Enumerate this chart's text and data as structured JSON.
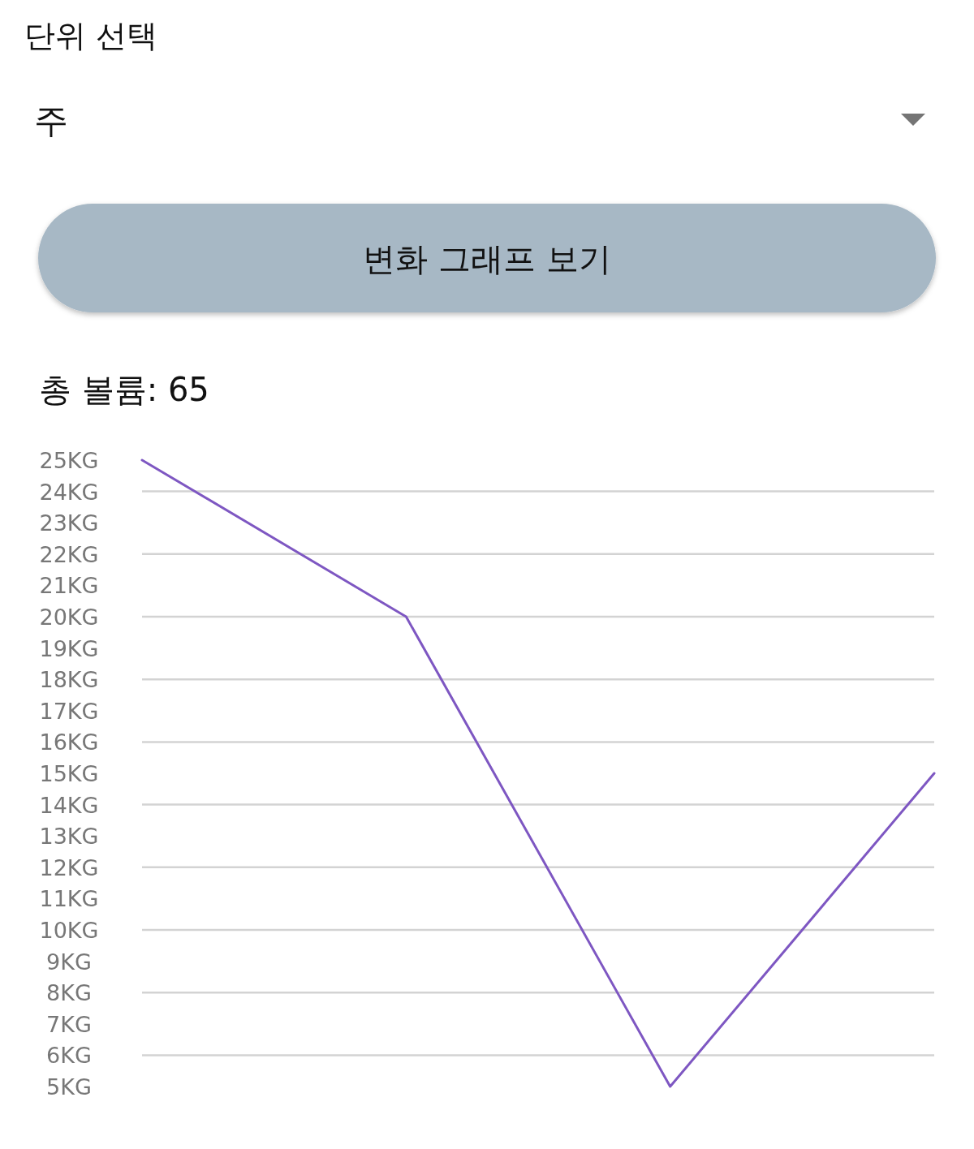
{
  "chart_data": {
    "type": "line",
    "title": "총 볼륨: 65",
    "annotations": [
      "단위 선택",
      "주",
      "변화 그래프 보기"
    ],
    "categories": [
      null,
      null,
      null,
      null
    ],
    "series": [
      {
        "color": "#7e57c2",
        "values": [
          25,
          20,
          5,
          15
        ]
      }
    ],
    "ylim": [
      5,
      25
    ],
    "yticks": [
      {
        "value": 5,
        "label": "5KG"
      },
      {
        "value": 6,
        "label": "6KG"
      },
      {
        "value": 7,
        "label": "7KG"
      },
      {
        "value": 8,
        "label": "8KG"
      },
      {
        "value": 9,
        "label": "9KG"
      },
      {
        "value": 10,
        "label": "10KG"
      },
      {
        "value": 11,
        "label": "11KG"
      },
      {
        "value": 12,
        "label": "12KG"
      },
      {
        "value": 13,
        "label": "13KG"
      },
      {
        "value": 14,
        "label": "14KG"
      },
      {
        "value": 15,
        "label": "15KG"
      },
      {
        "value": 16,
        "label": "16KG"
      },
      {
        "value": 17,
        "label": "17KG"
      },
      {
        "value": 18,
        "label": "18KG"
      },
      {
        "value": 19,
        "label": "19KG"
      },
      {
        "value": 20,
        "label": "20KG"
      },
      {
        "value": 21,
        "label": "21KG"
      },
      {
        "value": 22,
        "label": "22KG"
      },
      {
        "value": 23,
        "label": "23KG"
      },
      {
        "value": 24,
        "label": "24KG"
      },
      {
        "value": 25,
        "label": "25KG"
      }
    ],
    "grid": "y",
    "tick_labels": "y",
    "line_style": "solid"
  }
}
